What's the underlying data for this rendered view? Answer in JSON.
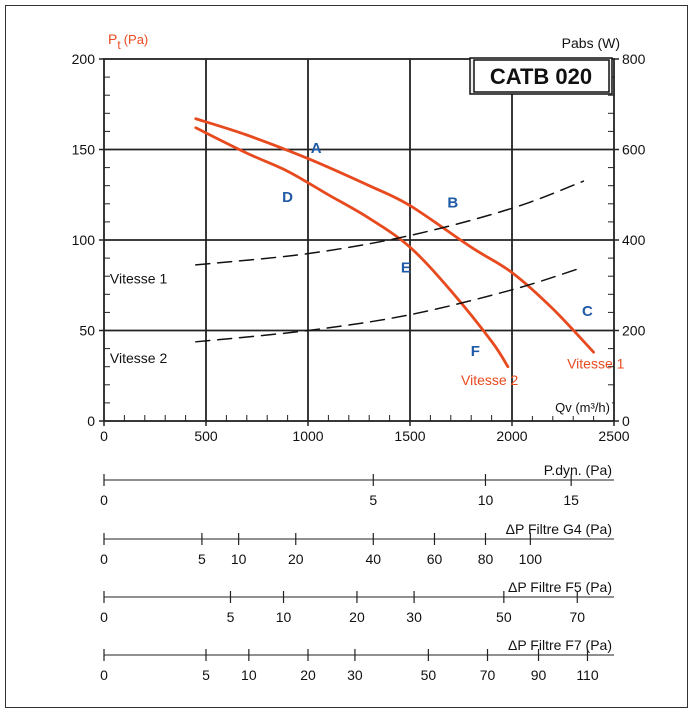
{
  "chart_data": {
    "type": "line",
    "title": "CATB 020",
    "y_left_label": {
      "main": "P",
      "sub": "t",
      "unit": "(Pa)"
    },
    "y_right_label": "Pabs (W)",
    "x_label": "Qv (m³/h)",
    "x_ticks": [
      "0",
      "500",
      "1000",
      "1500",
      "2000",
      "2500"
    ],
    "y_left_ticks": [
      "0",
      "50",
      "100",
      "150",
      "200"
    ],
    "y_right_ticks": [
      "0",
      "200",
      "400",
      "600",
      "800"
    ],
    "xlim": [
      0,
      2500
    ],
    "ylim_left": [
      0,
      200
    ],
    "ylim_right": [
      0,
      800
    ],
    "grid": true,
    "series": [
      {
        "name": "Vitesse 1",
        "axis": "left",
        "style": "solid",
        "color": "#e84a1f",
        "x": [
          450,
          700,
          1000,
          1300,
          1500,
          1800,
          2000,
          2200,
          2400
        ],
        "y": [
          167,
          158,
          145,
          130,
          119,
          96,
          82,
          62,
          38
        ]
      },
      {
        "name": "Vitesse 2",
        "axis": "left",
        "style": "solid",
        "color": "#e84a1f",
        "x": [
          450,
          700,
          900,
          1100,
          1300,
          1500,
          1700,
          1900,
          1980
        ],
        "y": [
          162,
          148,
          138,
          125,
          112,
          96,
          72,
          44,
          30
        ]
      },
      {
        "name": "Vitesse 1",
        "axis": "right",
        "style": "dashed",
        "color": "#111111",
        "x": [
          450,
          1000,
          1500,
          2000,
          2350
        ],
        "y": [
          345,
          370,
          410,
          470,
          530
        ]
      },
      {
        "name": "Vitesse 2",
        "axis": "right",
        "style": "dashed",
        "color": "#111111",
        "x": [
          450,
          1000,
          1500,
          2000,
          2350
        ],
        "y": [
          175,
          200,
          235,
          290,
          340
        ]
      }
    ],
    "point_labels": [
      {
        "label": "A",
        "x": 1040,
        "y": 148
      },
      {
        "label": "B",
        "x": 1710,
        "y": 118
      },
      {
        "label": "C",
        "x": 2370,
        "y": 58
      },
      {
        "label": "D",
        "x": 900,
        "y": 121
      },
      {
        "label": "E",
        "x": 1480,
        "y": 82
      },
      {
        "label": "F",
        "x": 1820,
        "y": 36
      }
    ],
    "curve_labels": [
      {
        "text": "Vitesse 1",
        "color": "#111111",
        "x": 310,
        "y": 76
      },
      {
        "text": "Vitesse 2",
        "color": "#111111",
        "x": 310,
        "y": 32
      },
      {
        "text": "Vitesse 2",
        "color": "#e84a1f",
        "x": 1750,
        "y": 20
      },
      {
        "text": "Vitesse 1",
        "color": "#e84a1f",
        "x": 2270,
        "y": 29
      }
    ],
    "secondary_scales": [
      {
        "label": "P.dyn. (Pa)",
        "min_q": 0,
        "max_q": 2500,
        "k": 2,
        "ticks": [
          {
            "v": 0,
            "q": 0,
            "lbl": "0"
          },
          {
            "v": 5,
            "q": 1320,
            "lbl": "5"
          },
          {
            "v": 10,
            "q": 1870,
            "lbl": "10"
          },
          {
            "v": 15,
            "q": 2290,
            "lbl": "15"
          }
        ]
      },
      {
        "label": "ΔP Filtre G4 (Pa)",
        "min_q": 0,
        "max_q": 2500,
        "k": 2,
        "ticks": [
          {
            "v": 0,
            "q": 0,
            "lbl": "0"
          },
          {
            "v": 5,
            "q": 480,
            "lbl": "5"
          },
          {
            "v": 10,
            "q": 660,
            "lbl": "10"
          },
          {
            "v": 20,
            "q": 940,
            "lbl": "20"
          },
          {
            "v": 40,
            "q": 1320,
            "lbl": "40"
          },
          {
            "v": 60,
            "q": 1620,
            "lbl": "60"
          },
          {
            "v": 80,
            "q": 1870,
            "lbl": "80"
          },
          {
            "v": 100,
            "q": 2090,
            "lbl": "100"
          }
        ]
      },
      {
        "label": "ΔP Filtre F5 (Pa)",
        "min_q": 0,
        "max_q": 2500,
        "k": 2,
        "ticks": [
          {
            "v": 0,
            "q": 0,
            "lbl": "0"
          },
          {
            "v": 5,
            "q": 620,
            "lbl": "5"
          },
          {
            "v": 10,
            "q": 880,
            "lbl": "10"
          },
          {
            "v": 20,
            "q": 1240,
            "lbl": "20"
          },
          {
            "v": 30,
            "q": 1520,
            "lbl": "30"
          },
          {
            "v": 50,
            "q": 1960,
            "lbl": "50"
          },
          {
            "v": 70,
            "q": 2320,
            "lbl": "70"
          }
        ]
      },
      {
        "label": "ΔP Filtre F7 (Pa)",
        "min_q": 0,
        "max_q": 2500,
        "k": 2,
        "ticks": [
          {
            "v": 0,
            "q": 0,
            "lbl": "0"
          },
          {
            "v": 5,
            "q": 500,
            "lbl": "5"
          },
          {
            "v": 10,
            "q": 710,
            "lbl": "10"
          },
          {
            "v": 20,
            "q": 1000,
            "lbl": "20"
          },
          {
            "v": 30,
            "q": 1230,
            "lbl": "30"
          },
          {
            "v": 50,
            "q": 1590,
            "lbl": "50"
          },
          {
            "v": 70,
            "q": 1880,
            "lbl": "70"
          },
          {
            "v": 90,
            "q": 2130,
            "lbl": "90"
          },
          {
            "v": 110,
            "q": 2370,
            "lbl": "110"
          }
        ]
      }
    ]
  }
}
